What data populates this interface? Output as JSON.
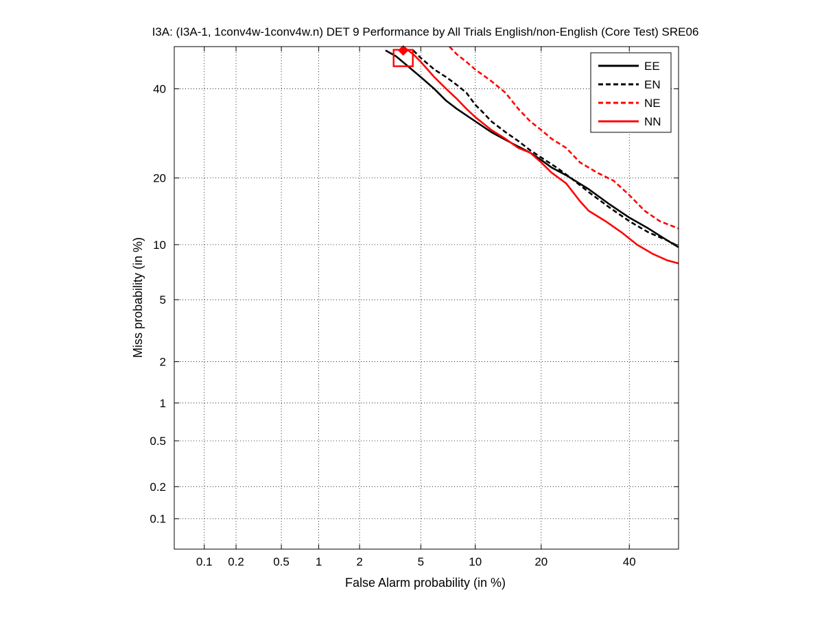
{
  "chart_data": {
    "type": "line",
    "title": "I3A: (I3A-1, 1conv4w-1conv4w.n) DET 9 Performance by All Trials English/non-English (Core Test) SRE06",
    "xlabel": "False Alarm probability (in %)",
    "ylabel": "Miss probability (in %)",
    "xscale": "probit",
    "yscale": "probit",
    "xlim": [
      0.05,
      53
    ],
    "ylim": [
      0.05,
      51
    ],
    "xticks": [
      0.1,
      0.2,
      0.5,
      1,
      2,
      5,
      10,
      20,
      40
    ],
    "xtick_labels": [
      "0.1",
      "0.2",
      "0.5",
      "1",
      "2",
      "5",
      "10",
      "20",
      "40"
    ],
    "yticks": [
      0.1,
      0.2,
      0.5,
      1,
      2,
      5,
      10,
      20,
      40
    ],
    "ytick_labels": [
      "0.1",
      "0.2",
      "0.5",
      "1",
      "2",
      "5",
      "10",
      "20",
      "40"
    ],
    "grid": true,
    "legend_position": "top-right",
    "series": [
      {
        "name": "EE",
        "color": "#000000",
        "style": "solid",
        "x": [
          3.0,
          3.5,
          4.0,
          5.0,
          6.0,
          7.0,
          8.0,
          10.0,
          12.0,
          15.0,
          18.0,
          20.0,
          22.0,
          25.0,
          30.0,
          35.0,
          40.0,
          45.0,
          50.0,
          53.0
        ],
        "y": [
          50.0,
          48.5,
          46.5,
          43.0,
          40.0,
          37.0,
          35.0,
          32.0,
          29.5,
          27.0,
          25.0,
          23.5,
          22.0,
          20.5,
          18.0,
          15.5,
          13.5,
          12.0,
          10.5,
          9.7
        ]
      },
      {
        "name": "EN",
        "color": "#000000",
        "style": "dashed",
        "x": [
          4.5,
          5.0,
          6.0,
          7.0,
          8.0,
          9.0,
          10.0,
          11.0,
          12.0,
          14.0,
          16.0,
          18.0,
          20.0,
          23.0,
          26.0,
          30.0,
          35.0,
          40.0,
          45.0,
          50.0,
          53.0
        ],
        "y": [
          50.0,
          48.0,
          45.0,
          43.0,
          41.0,
          39.0,
          36.0,
          34.0,
          32.0,
          29.5,
          27.5,
          25.5,
          24.0,
          22.0,
          20.0,
          17.5,
          15.0,
          13.0,
          11.5,
          10.5,
          9.8
        ]
      },
      {
        "name": "NE",
        "color": "#ff0000",
        "style": "dashed",
        "x": [
          7.3,
          8.0,
          9.0,
          10.0,
          12.0,
          14.0,
          16.0,
          18.0,
          20.0,
          22.0,
          25.0,
          28.0,
          32.0,
          36.0,
          40.0,
          44.0,
          48.0,
          53.0
        ],
        "y": [
          51.0,
          49.0,
          47.0,
          45.0,
          42.0,
          39.0,
          35.0,
          32.0,
          30.0,
          28.0,
          26.0,
          23.0,
          21.0,
          19.5,
          17.0,
          14.5,
          13.0,
          12.0
        ]
      },
      {
        "name": "NN",
        "color": "#ff0000",
        "style": "solid",
        "x": [
          3.9,
          4.5,
          5.0,
          6.0,
          7.0,
          8.0,
          9.0,
          10.0,
          12.0,
          14.0,
          16.0,
          18.0,
          20.0,
          22.0,
          25.0,
          28.0,
          30.0,
          34.0,
          38.0,
          42.0,
          46.0,
          50.0,
          53.0
        ],
        "y": [
          51.0,
          49.0,
          47.0,
          43.0,
          40.0,
          37.5,
          35.0,
          33.0,
          30.0,
          28.0,
          26.0,
          25.0,
          23.0,
          21.0,
          19.0,
          16.0,
          14.5,
          13.0,
          11.5,
          10.0,
          9.0,
          8.3,
          8.0
        ]
      }
    ],
    "markers": [
      {
        "name": "min DCF",
        "series": "NN",
        "shape": "square",
        "x": 3.9,
        "y": 48.0,
        "color": "#ff0000"
      },
      {
        "name": "actual DCF",
        "series": "NN",
        "shape": "diamond",
        "x": 3.9,
        "y": 50.0,
        "color": "#ff0000"
      }
    ]
  }
}
